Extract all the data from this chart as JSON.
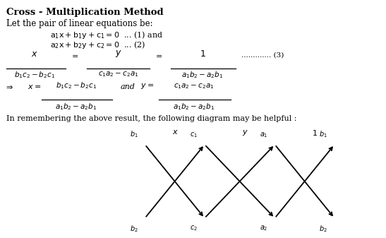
{
  "title_bold": "Cross - Multiplication Method",
  "line1": "Let the pair of linear equations be:",
  "eq1": "a₁x + b₁y + c₁ = 0 ... (1) and",
  "eq2": "a₂x + b₂y + c₂ = 0 ... (2)",
  "remind": "In remembering the above result, the following diagram may be helpful :",
  "bg_color": "#ffffff",
  "text_color": "#000000",
  "fig_width": 5.47,
  "fig_height": 3.37,
  "dpi": 100
}
